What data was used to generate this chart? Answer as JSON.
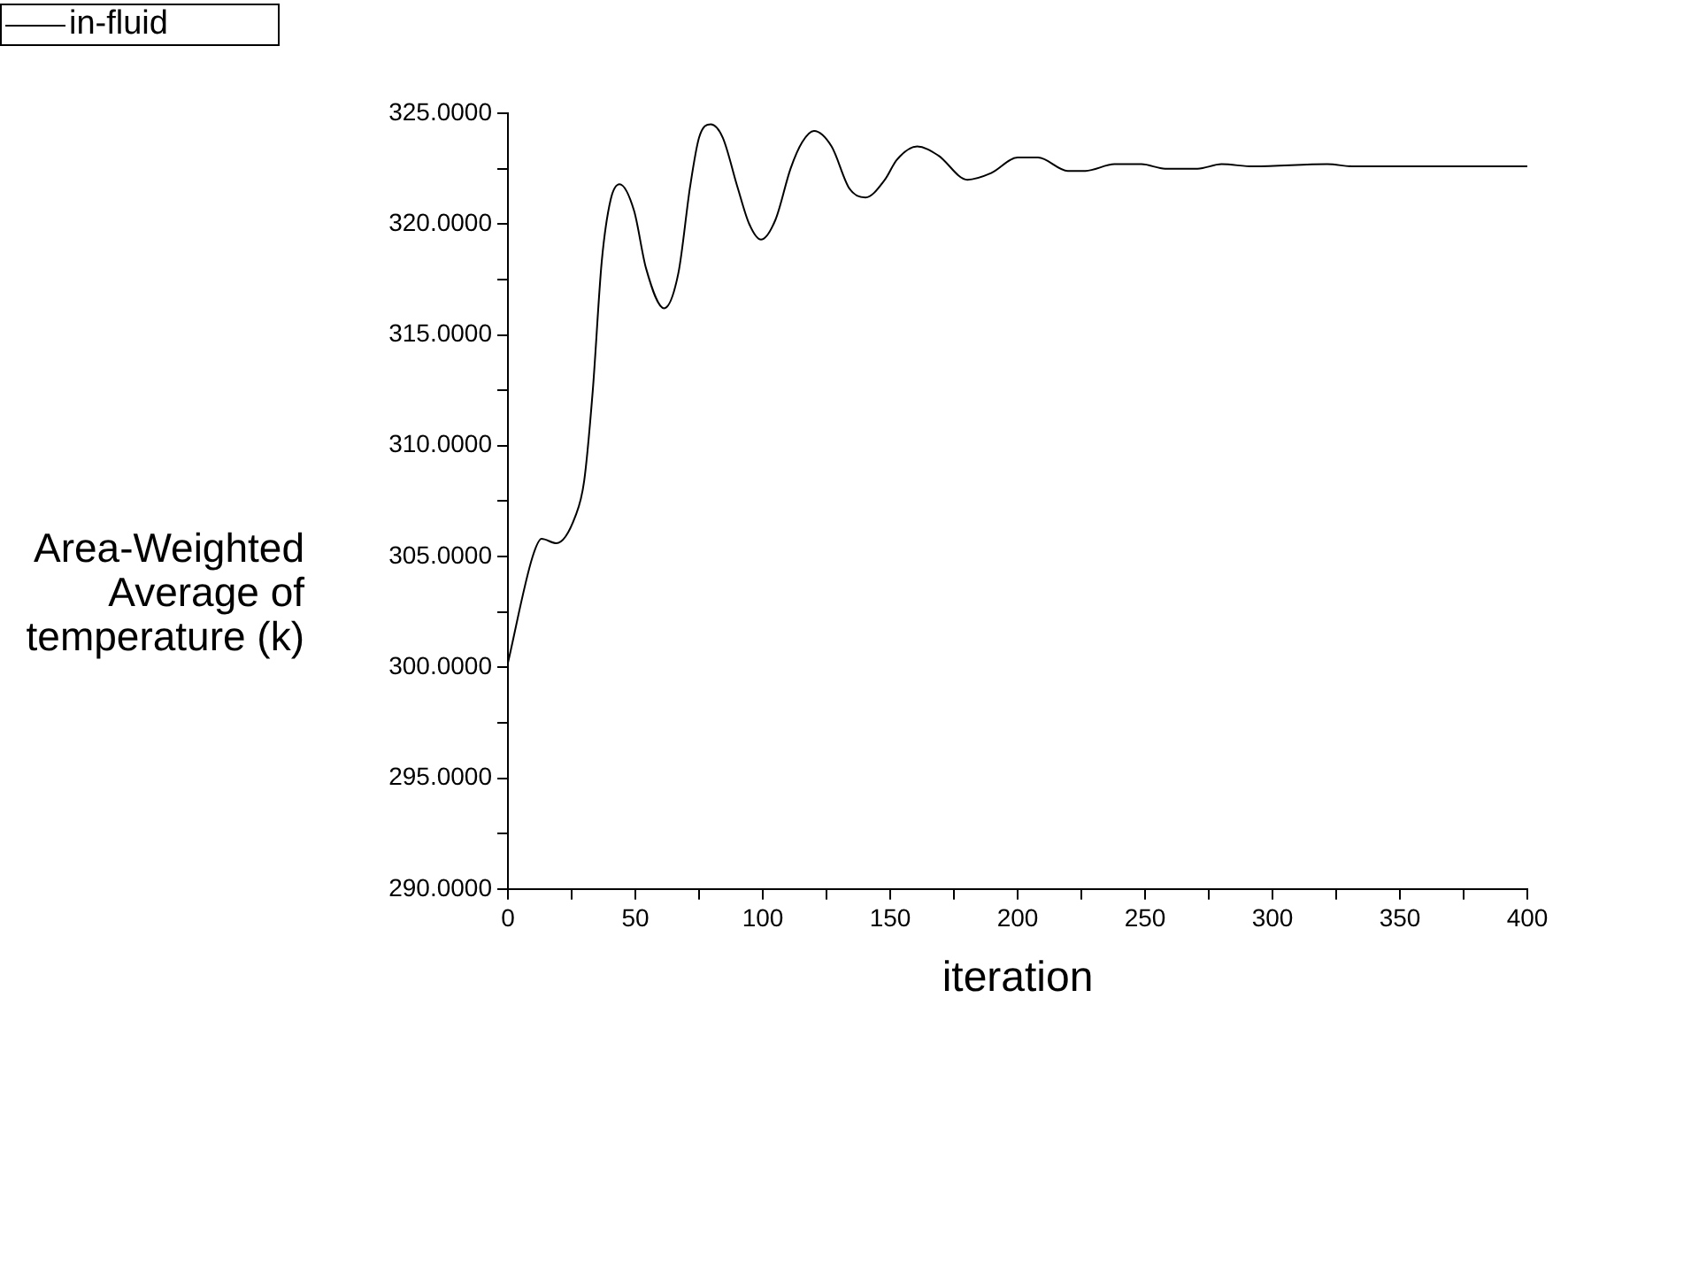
{
  "chart_data": {
    "type": "line",
    "xlabel": "iteration",
    "ylabel": "Area-Weighted Average of temperature (k)",
    "legend": "top left",
    "marker": "none",
    "grid": false,
    "xlim": [
      0,
      400
    ],
    "xticks": [
      0,
      {
        "value": 25,
        "label": null
      },
      50,
      {
        "value": 75,
        "label": null
      },
      100,
      {
        "value": 125,
        "label": null
      },
      150,
      {
        "value": 175,
        "label": null
      },
      200,
      {
        "value": 225,
        "label": null
      },
      250,
      {
        "value": 275,
        "label": null
      },
      300,
      {
        "value": 325,
        "label": null
      },
      350,
      {
        "value": 375,
        "label": null
      },
      400
    ],
    "ylim": [
      290,
      325
    ],
    "yticks": [
      {
        "value": 290,
        "label": "290.0000"
      },
      {
        "value": 292.5,
        "label": null
      },
      {
        "value": 295,
        "label": "295.0000"
      },
      {
        "value": 297.5,
        "label": null
      },
      {
        "value": 300,
        "label": "300.0000"
      },
      {
        "value": 302.5,
        "label": null
      },
      {
        "value": 305,
        "label": "305.0000"
      },
      {
        "value": 307.5,
        "label": null
      },
      {
        "value": 310,
        "label": "310.0000"
      },
      {
        "value": 312.5,
        "label": null
      },
      {
        "value": 315,
        "label": "315.0000"
      },
      {
        "value": 317.5,
        "label": null
      },
      {
        "value": 320,
        "label": "320.0000"
      },
      {
        "value": 322.5,
        "label": null
      },
      {
        "value": 325,
        "label": "325.0000"
      }
    ],
    "series": [
      {
        "name": "in-fluid",
        "color": "#000000",
        "x": [
          0,
          9.7,
          13.2,
          19,
          26.4,
          29.9,
          33.3,
          36.8,
          40.3,
          43.8,
          49.5,
          54.2,
          61.3,
          66.9,
          71.5,
          75,
          79.6,
          84.3,
          90,
          94.7,
          99.3,
          105,
          110.9,
          115.5,
          120.1,
          127,
          134,
          140.3,
          147.9,
          152.6,
          160.6,
          168.8,
          180.3,
          189.6,
          200,
          208,
          219.7,
          226.6,
          238,
          248.6,
          257.9,
          270.6,
          280,
          292.6,
          321.5,
          332,
          400
        ],
        "values": [
          300.2,
          305,
          305.8,
          305.6,
          306.8,
          308.4,
          312.5,
          318.3,
          321.1,
          321.8,
          320.6,
          318,
          316.2,
          317.8,
          321.7,
          323.9,
          324.5,
          323.9,
          321.7,
          320,
          319.3,
          320.2,
          322.5,
          323.7,
          324.2,
          323.5,
          321.6,
          321.2,
          322,
          322.9,
          323.5,
          323.1,
          322,
          322.3,
          323,
          323,
          322.4,
          322.4,
          322.7,
          322.7,
          322.5,
          322.5,
          322.7,
          322.6,
          322.7,
          322.6,
          322.6
        ]
      }
    ]
  }
}
